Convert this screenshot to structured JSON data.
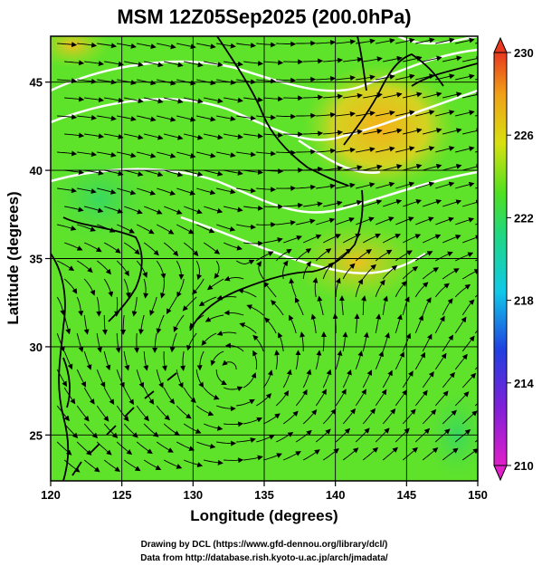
{
  "title": "MSM 12Z05Sep2025 (200.0hPa)",
  "x_axis": {
    "label": "Longitude (degrees)",
    "range": [
      120,
      150
    ],
    "ticks": [
      120,
      125,
      130,
      135,
      140,
      145,
      150
    ]
  },
  "y_axis": {
    "label": "Latitude  (degrees)",
    "range": [
      22.4,
      47.6
    ],
    "ticks": [
      25,
      30,
      35,
      40,
      45
    ]
  },
  "colorbar": {
    "range": [
      210,
      230
    ],
    "ticks": [
      210,
      214,
      218,
      222,
      226,
      230
    ],
    "colors": [
      "#e020c8",
      "#2040e0",
      "#10c8e8",
      "#20d880",
      "#50e020",
      "#d8e010",
      "#f0a018",
      "#e83820"
    ]
  },
  "credits": {
    "line1": "Drawing by DCL (https://www.gfd-dennou.org/library/dcl/)",
    "line2": "Data from http://database.rish.kyoto-u.ac.jp/arch/jmadata/"
  },
  "map_style": {
    "background_field": "#5fe22a",
    "warm_patch": "#f2c21e",
    "streamline_color": "#000000",
    "contour_color": "#ffffff",
    "grid_color": "#000000"
  }
}
